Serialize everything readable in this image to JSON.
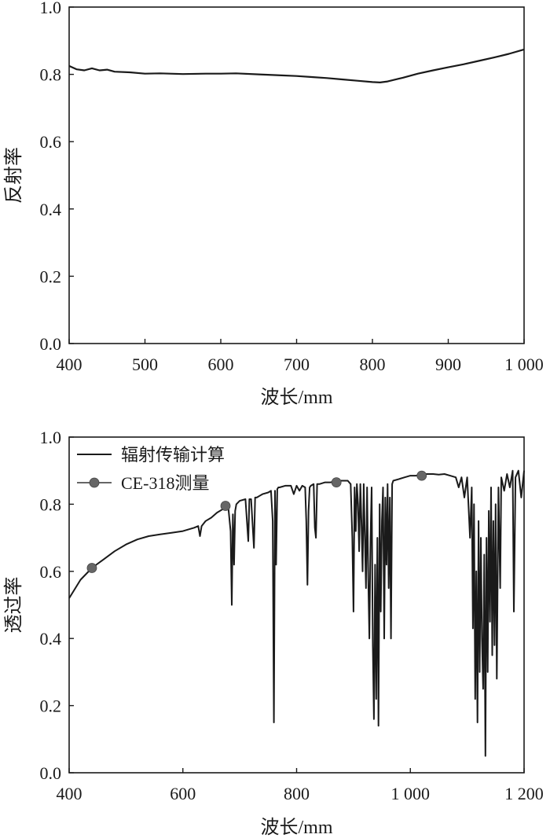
{
  "chart_data": [
    {
      "type": "line",
      "title": "",
      "xlabel": "波长/mm",
      "ylabel": "反射率",
      "xlim": [
        400,
        1000
      ],
      "ylim": [
        0.0,
        1.0
      ],
      "x_ticks": [
        400,
        500,
        600,
        700,
        800,
        900,
        1000
      ],
      "x_tick_labels": [
        "400",
        "500",
        "600",
        "700",
        "800",
        "900",
        "1 000"
      ],
      "y_ticks": [
        0.0,
        0.2,
        0.4,
        0.6,
        0.8,
        1.0
      ],
      "y_tick_labels": [
        "0.0",
        "0.2",
        "0.4",
        "0.6",
        "0.8",
        "1.0"
      ],
      "grid": false,
      "series": [
        {
          "color": "#1a1a1a",
          "x": [
            400,
            410,
            420,
            430,
            440,
            450,
            460,
            480,
            500,
            520,
            550,
            580,
            600,
            620,
            650,
            680,
            700,
            720,
            740,
            760,
            780,
            800,
            810,
            820,
            840,
            860,
            880,
            900,
            920,
            940,
            960,
            980,
            1000
          ],
          "y": [
            0.825,
            0.815,
            0.812,
            0.818,
            0.812,
            0.814,
            0.808,
            0.806,
            0.802,
            0.803,
            0.801,
            0.802,
            0.802,
            0.803,
            0.8,
            0.797,
            0.795,
            0.792,
            0.789,
            0.785,
            0.781,
            0.777,
            0.776,
            0.779,
            0.79,
            0.802,
            0.812,
            0.821,
            0.83,
            0.84,
            0.85,
            0.861,
            0.874
          ]
        }
      ]
    },
    {
      "type": "line",
      "title": "",
      "xlabel": "波长/mm",
      "ylabel": "透过率",
      "xlim": [
        400,
        1200
      ],
      "ylim": [
        0.0,
        1.0
      ],
      "x_ticks": [
        400,
        600,
        800,
        1000,
        1200
      ],
      "x_tick_labels": [
        "400",
        "600",
        "800",
        "1 000",
        "1 200"
      ],
      "y_ticks": [
        0.0,
        0.2,
        0.4,
        0.6,
        0.8,
        1.0
      ],
      "y_tick_labels": [
        "0.0",
        "0.2",
        "0.4",
        "0.6",
        "0.8",
        "1.0"
      ],
      "grid": false,
      "legend": "top-left",
      "series": [
        {
          "name": "辐射传输计算",
          "style": "line",
          "color": "#1a1a1a",
          "x": [
            400,
            420,
            440,
            460,
            480,
            500,
            520,
            540,
            560,
            580,
            600,
            610,
            620,
            627,
            630,
            633,
            640,
            650,
            660,
            670,
            680,
            684,
            686,
            688,
            690,
            692,
            694,
            700,
            710,
            715,
            717,
            720,
            725,
            727,
            730,
            735,
            740,
            750,
            755,
            758,
            760,
            762,
            764,
            766,
            768,
            770,
            780,
            790,
            795,
            800,
            805,
            810,
            815,
            817,
            819,
            821,
            823,
            825,
            830,
            832,
            834,
            836,
            840,
            850,
            860,
            870,
            880,
            890,
            895,
            898,
            900,
            902,
            904,
            906,
            908,
            910,
            912,
            914,
            916,
            918,
            920,
            922,
            924,
            926,
            928,
            930,
            932,
            934,
            936,
            938,
            940,
            942,
            944,
            946,
            948,
            950,
            952,
            954,
            956,
            958,
            960,
            962,
            964,
            966,
            968,
            970,
            980,
            990,
            1000,
            1010,
            1020,
            1030,
            1040,
            1050,
            1060,
            1070,
            1080,
            1085,
            1090,
            1095,
            1100,
            1105,
            1108,
            1110,
            1112,
            1114,
            1116,
            1118,
            1120,
            1122,
            1124,
            1126,
            1128,
            1130,
            1132,
            1134,
            1136,
            1138,
            1140,
            1142,
            1144,
            1146,
            1148,
            1150,
            1152,
            1155,
            1158,
            1160,
            1165,
            1170,
            1175,
            1180,
            1182,
            1185,
            1190,
            1195,
            1200
          ],
          "y": [
            0.52,
            0.575,
            0.61,
            0.635,
            0.66,
            0.68,
            0.695,
            0.705,
            0.71,
            0.715,
            0.72,
            0.725,
            0.73,
            0.735,
            0.705,
            0.735,
            0.75,
            0.76,
            0.775,
            0.785,
            0.79,
            0.72,
            0.5,
            0.77,
            0.62,
            0.78,
            0.8,
            0.81,
            0.815,
            0.69,
            0.815,
            0.815,
            0.67,
            0.82,
            0.82,
            0.825,
            0.83,
            0.835,
            0.84,
            0.75,
            0.15,
            0.84,
            0.62,
            0.845,
            0.85,
            0.85,
            0.855,
            0.855,
            0.83,
            0.855,
            0.84,
            0.855,
            0.85,
            0.75,
            0.56,
            0.78,
            0.85,
            0.855,
            0.86,
            0.73,
            0.7,
            0.86,
            0.86,
            0.865,
            0.865,
            0.87,
            0.87,
            0.87,
            0.86,
            0.7,
            0.48,
            0.85,
            0.72,
            0.86,
            0.8,
            0.66,
            0.86,
            0.75,
            0.6,
            0.86,
            0.7,
            0.55,
            0.85,
            0.58,
            0.4,
            0.7,
            0.85,
            0.38,
            0.16,
            0.62,
            0.22,
            0.7,
            0.14,
            0.8,
            0.48,
            0.75,
            0.85,
            0.4,
            0.82,
            0.62,
            0.86,
            0.55,
            0.82,
            0.4,
            0.86,
            0.87,
            0.875,
            0.88,
            0.885,
            0.885,
            0.89,
            0.89,
            0.89,
            0.888,
            0.89,
            0.885,
            0.88,
            0.85,
            0.88,
            0.82,
            0.88,
            0.7,
            0.85,
            0.43,
            0.8,
            0.22,
            0.6,
            0.15,
            0.75,
            0.3,
            0.7,
            0.4,
            0.25,
            0.65,
            0.05,
            0.7,
            0.3,
            0.78,
            0.45,
            0.85,
            0.35,
            0.75,
            0.38,
            0.8,
            0.28,
            0.85,
            0.55,
            0.88,
            0.84,
            0.89,
            0.85,
            0.9,
            0.48,
            0.88,
            0.9,
            0.82,
            0.9
          ]
        },
        {
          "name": "CE-318测量",
          "style": "line-marker",
          "color": "#666666",
          "x": [
            440,
            675,
            870,
            1020
          ],
          "y": [
            0.61,
            0.795,
            0.865,
            0.885
          ]
        }
      ]
    }
  ]
}
